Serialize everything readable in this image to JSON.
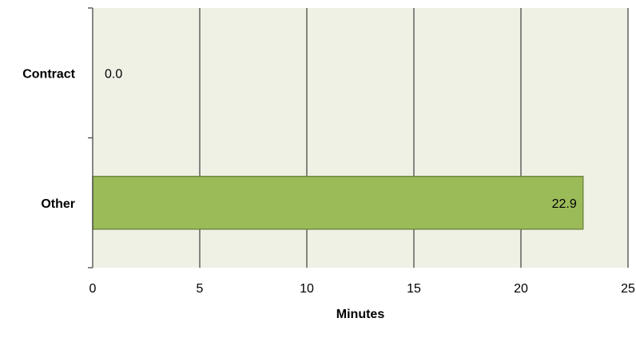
{
  "chart_data": {
    "type": "bar",
    "orientation": "horizontal",
    "categories": [
      "Contract",
      "Other"
    ],
    "values": [
      0.0,
      22.9
    ],
    "value_labels": [
      "0.0",
      "22.9"
    ],
    "xlabel": "Minutes",
    "ylabel": "",
    "xlim": [
      0,
      25
    ],
    "x_ticks": [
      0,
      5,
      10,
      15,
      20,
      25
    ],
    "x_tick_labels": [
      "0",
      "5",
      "10",
      "15",
      "20",
      "25"
    ],
    "grid": true,
    "legend": "none",
    "colors": {
      "bar_fill": "#9bbb59",
      "bar_stroke": "#71893f",
      "plot_background": "#eff1e5",
      "grid": "#4a4a4a"
    }
  }
}
